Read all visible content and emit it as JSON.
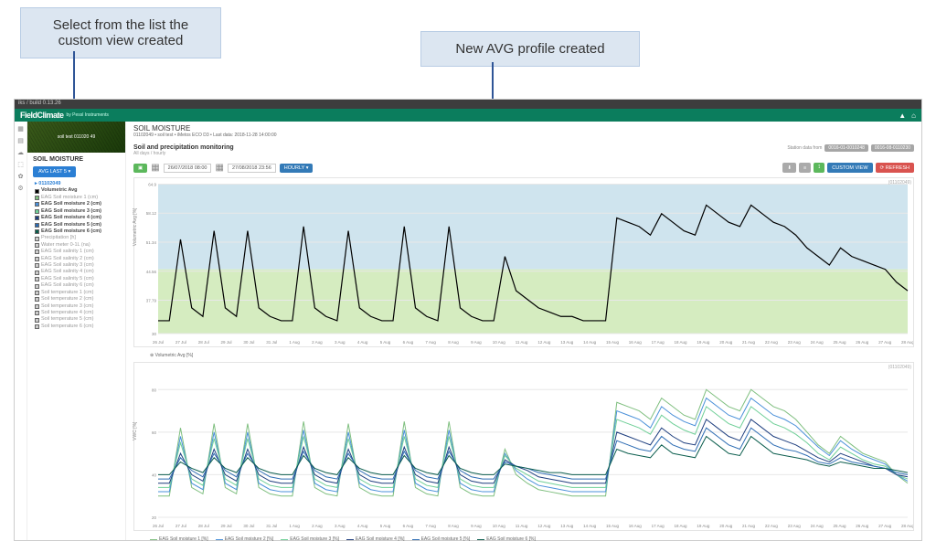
{
  "callouts": {
    "left": "Select from the list the custom view created",
    "right": "New AVG profile created"
  },
  "tabbar": "iks / build 0.13.26",
  "brand": {
    "main": "FieldClimate",
    "sub": "by Pessl Instruments"
  },
  "topbar_icons": {
    "user": "▲",
    "home": "⌂"
  },
  "iconcol": [
    "▦",
    "▤",
    "☁",
    "⬚",
    "✿",
    "⚙"
  ],
  "left": {
    "img_label": "soil test 011020 49",
    "section": "SOIL MOISTURE",
    "avg_btn": "AVG LAST 5 ▾",
    "station": "▸ 01102049",
    "items": [
      {
        "label": "Volumetric Avg",
        "color": "#000000",
        "dark": true
      },
      {
        "label": "EAG Soil moisture 1 (cm)",
        "color": "#7fbf7f"
      },
      {
        "label": "EAG Soil moisture 2 (cm)",
        "color": "#4a90d9",
        "dark": true
      },
      {
        "label": "EAG Soil moisture 3 (cm)",
        "color": "#6fcf97",
        "dark": true
      },
      {
        "label": "EAG Soil moisture 4 (cm)",
        "color": "#1f3f7f",
        "dark": true
      },
      {
        "label": "EAG Soil moisture 5 (cm)",
        "color": "#2d6cb3",
        "dark": true
      },
      {
        "label": "EAG Soil moisture 6 (cm)",
        "color": "#0b5d4d",
        "dark": true
      },
      {
        "label": "Precipitation [h]",
        "color": "#cccccc"
      },
      {
        "label": "Water meter 0-1L (na)",
        "color": "#cccccc"
      },
      {
        "label": "EAG Soil salinity 1 (cm)",
        "color": "#cccccc"
      },
      {
        "label": "EAG Soil salinity 2 (cm)",
        "color": "#cccccc"
      },
      {
        "label": "EAG Soil salinity 3 (cm)",
        "color": "#cccccc"
      },
      {
        "label": "EAG Soil salinity 4 (cm)",
        "color": "#cccccc"
      },
      {
        "label": "EAG Soil salinity 5 (cm)",
        "color": "#cccccc"
      },
      {
        "label": "EAG Soil salinity 6 (cm)",
        "color": "#cccccc"
      },
      {
        "label": "Soil temperature 1 (cm)",
        "color": "#cccccc"
      },
      {
        "label": "Soil temperature 2 (cm)",
        "color": "#cccccc"
      },
      {
        "label": "Soil temperature 3 (cm)",
        "color": "#cccccc"
      },
      {
        "label": "Soil temperature 4 (cm)",
        "color": "#cccccc"
      },
      {
        "label": "Soil temperature 5 (cm)",
        "color": "#cccccc"
      },
      {
        "label": "Soil temperature 6 (cm)",
        "color": "#cccccc"
      }
    ]
  },
  "crumb": {
    "title": "SOIL MOISTURE",
    "sub": "01102049 • soil test • iMetos ECO D3 • Last data: 2018-11-28 14:00:00"
  },
  "panel": {
    "title": "Soil and precipitation monitoring",
    "sub": "All days / hourly",
    "station_label": "Station data from",
    "badge1": "0016-01-0010248",
    "badge2": "0016-08-0110230"
  },
  "toolbar": {
    "export": "▣",
    "cal": "▦",
    "from": "26/07/2018 08:00",
    "to": "27/08/2018 23:56",
    "mode": "HOURLY ▾",
    "dl": "⬇",
    "bar": "≡",
    "chart": "⟟",
    "custom": "CUSTOM VIEW",
    "refresh": "⟳ REFRESH"
  },
  "chart1": {
    "type": "area-line",
    "ylabel": "Volumetric Avg [%]",
    "rlabel": "(01102049)",
    "legend": "⊕ Volumetric Avg [%]",
    "bands": [
      {
        "from": 45,
        "to": 65,
        "color": "#cfe4ee"
      },
      {
        "from": 30,
        "to": 45,
        "color": "#d5ecc0"
      }
    ],
    "ylim": [
      30,
      65
    ],
    "yticks": [
      30,
      37.79,
      44.56,
      51.34,
      58.12,
      64.9
    ],
    "yticklabels": [
      "30",
      "37.79",
      "44.56",
      "51.34",
      "58.12",
      "64.9"
    ],
    "xticks": [
      "26 Jul",
      "27 Jul",
      "28 Jul",
      "29 Jul",
      "30 Jul",
      "31 Jul",
      "1 Aug",
      "2 Aug",
      "3 Aug",
      "4 Aug",
      "5 Aug",
      "6 Aug",
      "7 Aug",
      "8 Aug",
      "9 Aug",
      "10 Aug",
      "11 Aug",
      "12 Aug",
      "13 Aug",
      "14 Aug",
      "15 Aug",
      "16 Aug",
      "17 Aug",
      "18 Aug",
      "19 Aug",
      "20 Aug",
      "21 Aug",
      "22 Aug",
      "23 Aug",
      "24 Aug",
      "25 Aug",
      "26 Aug",
      "27 Aug",
      "28 Aug"
    ],
    "series": {
      "color": "#000000",
      "width": 1.2,
      "y": [
        33,
        33,
        52,
        36,
        34,
        54,
        36,
        34,
        54,
        36,
        34,
        33,
        33,
        55,
        36,
        34,
        33,
        54,
        36,
        34,
        33,
        33,
        55,
        36,
        34,
        33,
        55,
        36,
        34,
        33,
        33,
        48,
        40,
        38,
        36,
        35,
        34,
        34,
        33,
        33,
        33,
        57,
        56,
        55,
        53,
        58,
        56,
        54,
        53,
        60,
        58,
        56,
        55,
        60,
        58,
        56,
        55,
        53,
        50,
        48,
        46,
        50,
        48,
        47,
        46,
        45,
        42,
        40
      ]
    }
  },
  "chart2": {
    "type": "multiline",
    "ylabel": "VWC [%]",
    "rlabel": "(01102049)",
    "ylim": [
      20,
      90
    ],
    "yticks": [
      20,
      40,
      60,
      80
    ],
    "xticks": [
      "26 Jul",
      "27 Jul",
      "28 Jul",
      "29 Jul",
      "30 Jul",
      "31 Jul",
      "1 Aug",
      "2 Aug",
      "3 Aug",
      "4 Aug",
      "5 Aug",
      "6 Aug",
      "7 Aug",
      "8 Aug",
      "9 Aug",
      "10 Aug",
      "11 Aug",
      "12 Aug",
      "13 Aug",
      "14 Aug",
      "15 Aug",
      "16 Aug",
      "17 Aug",
      "18 Aug",
      "19 Aug",
      "20 Aug",
      "21 Aug",
      "22 Aug",
      "23 Aug",
      "24 Aug",
      "25 Aug",
      "26 Aug",
      "27 Aug",
      "28 Aug"
    ],
    "legend": [
      {
        "label": "EAG Soil moisture 1 [%]",
        "color": "#7fbf7f"
      },
      {
        "label": "EAG Soil moisture 2 [%]",
        "color": "#4a90d9"
      },
      {
        "label": "EAG Soil moisture 3 [%]",
        "color": "#6fcf97"
      },
      {
        "label": "EAG Soil moisture 4 [%]",
        "color": "#1f3f7f"
      },
      {
        "label": "EAG Soil moisture 5 [%]",
        "color": "#2d6cb3"
      },
      {
        "label": "EAG Soil moisture 6 [%]",
        "color": "#0b5d4d"
      }
    ],
    "series": [
      {
        "color": "#7fbf7f",
        "y": [
          30,
          30,
          62,
          34,
          31,
          64,
          34,
          31,
          64,
          34,
          31,
          30,
          30,
          65,
          34,
          31,
          30,
          64,
          34,
          31,
          30,
          30,
          65,
          34,
          31,
          30,
          65,
          34,
          31,
          30,
          30,
          52,
          40,
          36,
          33,
          32,
          31,
          30,
          30,
          30,
          30,
          74,
          72,
          70,
          66,
          76,
          72,
          68,
          66,
          80,
          76,
          72,
          70,
          80,
          76,
          72,
          70,
          66,
          60,
          54,
          50,
          58,
          54,
          50,
          48,
          46,
          40,
          36
        ]
      },
      {
        "color": "#4a90d9",
        "y": [
          32,
          32,
          58,
          36,
          33,
          60,
          36,
          33,
          60,
          36,
          33,
          32,
          32,
          61,
          36,
          33,
          32,
          60,
          36,
          33,
          32,
          32,
          61,
          36,
          33,
          32,
          61,
          36,
          33,
          32,
          32,
          50,
          42,
          38,
          35,
          34,
          33,
          32,
          32,
          32,
          32,
          70,
          68,
          66,
          62,
          72,
          68,
          65,
          63,
          76,
          72,
          68,
          66,
          76,
          72,
          68,
          66,
          63,
          58,
          53,
          49,
          56,
          52,
          49,
          47,
          45,
          40,
          37
        ]
      },
      {
        "color": "#6fcf97",
        "y": [
          34,
          34,
          55,
          38,
          35,
          57,
          38,
          35,
          57,
          38,
          35,
          34,
          34,
          58,
          38,
          35,
          34,
          57,
          38,
          35,
          34,
          34,
          58,
          38,
          35,
          34,
          58,
          38,
          35,
          34,
          34,
          49,
          43,
          40,
          37,
          36,
          35,
          34,
          34,
          34,
          34,
          66,
          64,
          62,
          59,
          68,
          64,
          61,
          59,
          72,
          68,
          64,
          62,
          72,
          68,
          64,
          62,
          59,
          55,
          50,
          47,
          53,
          50,
          47,
          45,
          44,
          40,
          38
        ]
      },
      {
        "color": "#1f3f7f",
        "y": [
          36,
          36,
          50,
          40,
          37,
          52,
          40,
          37,
          52,
          40,
          37,
          36,
          36,
          53,
          40,
          37,
          36,
          52,
          40,
          37,
          36,
          36,
          53,
          40,
          37,
          36,
          53,
          40,
          37,
          36,
          36,
          47,
          44,
          42,
          39,
          38,
          37,
          36,
          36,
          36,
          36,
          60,
          58,
          56,
          54,
          62,
          58,
          55,
          54,
          66,
          62,
          58,
          56,
          66,
          62,
          58,
          56,
          54,
          51,
          48,
          46,
          50,
          48,
          46,
          44,
          43,
          40,
          39
        ]
      },
      {
        "color": "#2d6cb3",
        "y": [
          38,
          38,
          48,
          42,
          39,
          50,
          42,
          39,
          50,
          42,
          39,
          38,
          38,
          51,
          42,
          39,
          38,
          50,
          42,
          39,
          38,
          38,
          51,
          42,
          39,
          38,
          51,
          42,
          39,
          38,
          38,
          46,
          44,
          43,
          41,
          40,
          39,
          38,
          38,
          38,
          38,
          56,
          54,
          52,
          51,
          58,
          54,
          52,
          51,
          62,
          58,
          54,
          52,
          62,
          58,
          54,
          52,
          51,
          49,
          46,
          45,
          48,
          46,
          45,
          44,
          43,
          41,
          40
        ]
      },
      {
        "color": "#0b5d4d",
        "y": [
          40,
          40,
          46,
          43,
          41,
          48,
          43,
          41,
          48,
          43,
          41,
          40,
          40,
          49,
          43,
          41,
          40,
          48,
          43,
          41,
          40,
          40,
          49,
          43,
          41,
          40,
          49,
          43,
          41,
          40,
          40,
          45,
          44,
          43,
          42,
          41,
          41,
          40,
          40,
          40,
          40,
          52,
          50,
          49,
          48,
          54,
          50,
          49,
          48,
          58,
          54,
          50,
          49,
          58,
          54,
          50,
          49,
          48,
          47,
          45,
          44,
          46,
          45,
          44,
          43,
          43,
          42,
          41
        ]
      }
    ]
  }
}
